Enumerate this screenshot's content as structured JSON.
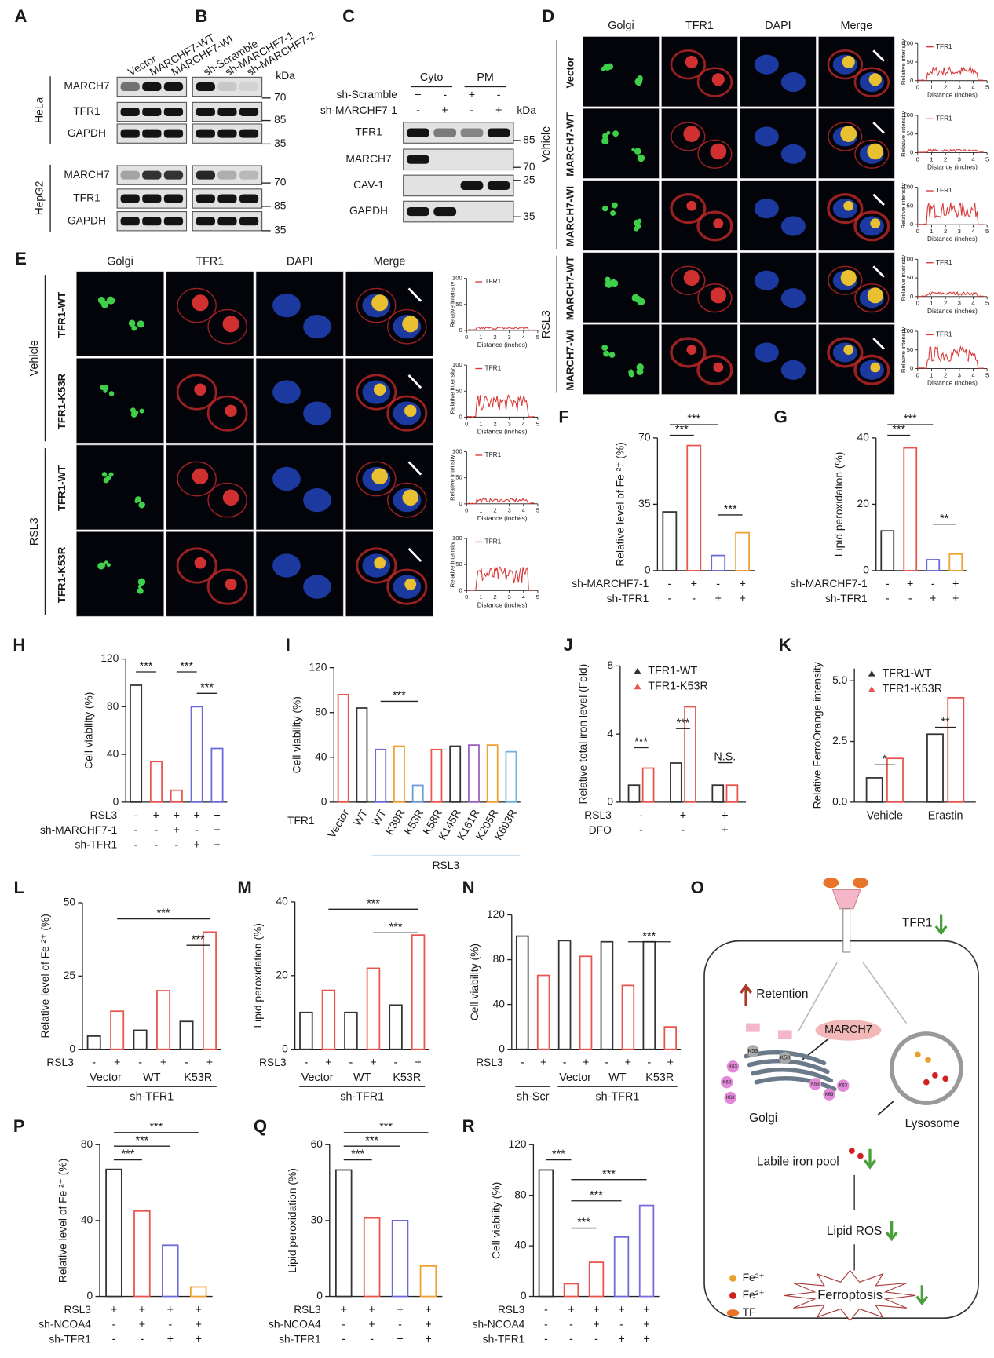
{
  "chart_data": [
    {
      "type": "bar",
      "panel": "F",
      "ylabel": "Relative level of Fe ²⁺ (%)",
      "ylim": [
        0,
        70
      ],
      "yticks": [
        0,
        35,
        70
      ],
      "values": [
        31,
        66,
        8,
        20
      ],
      "colors": [
        "#333333",
        "#e8554e",
        "#6a6ad8",
        "#f0a030"
      ],
      "conditions": [
        {
          "label": "sh-MARCHF7-1",
          "signs": [
            "-",
            "+",
            "-",
            "+"
          ]
        },
        {
          "label": "sh-TFR1",
          "signs": [
            "-",
            "-",
            "+",
            "+"
          ]
        }
      ],
      "annotations": [
        "***",
        "***",
        "***"
      ]
    },
    {
      "type": "bar",
      "panel": "G",
      "ylabel": "Lipid peroxidation (%)",
      "ylim": [
        0,
        40
      ],
      "yticks": [
        0,
        20,
        40
      ],
      "values": [
        12,
        37,
        3.3,
        5
      ],
      "colors": [
        "#333333",
        "#e8554e",
        "#6a6ad8",
        "#f0a030"
      ],
      "conditions": [
        {
          "label": "sh-MARCHF7-1",
          "signs": [
            "-",
            "+",
            "-",
            "+"
          ]
        },
        {
          "label": "sh-TFR1",
          "signs": [
            "-",
            "-",
            "+",
            "+"
          ]
        }
      ],
      "annotations": [
        "***",
        "***",
        "**"
      ]
    },
    {
      "type": "bar",
      "panel": "H",
      "ylabel": "Cell viability (%)",
      "ylim": [
        0,
        120
      ],
      "yticks": [
        0,
        40,
        80,
        120
      ],
      "values": [
        98,
        34,
        10,
        80,
        45
      ],
      "colors": [
        "#333333",
        "#e8554e",
        "#e8554e",
        "#6a6ad8",
        "#6a6ad8"
      ],
      "conditions": [
        {
          "label": "RSL3",
          "signs": [
            "-",
            "+",
            "+",
            "+",
            "+"
          ]
        },
        {
          "label": "sh-MARCHF7-1",
          "signs": [
            "-",
            "-",
            "+",
            "-",
            "+"
          ]
        },
        {
          "label": "sh-TFR1",
          "signs": [
            "-",
            "-",
            "-",
            "+",
            "+"
          ]
        }
      ],
      "annotations": [
        "***",
        "***",
        "***"
      ]
    },
    {
      "type": "bar",
      "panel": "I",
      "ylabel": "Cell viability (%)",
      "ylim": [
        0,
        120
      ],
      "yticks": [
        0,
        40,
        80,
        120
      ],
      "categories": [
        "Vector",
        "WT",
        "WT",
        "K39R",
        "K53R",
        "K58R",
        "K145R",
        "K161R",
        "K205R",
        "K693R"
      ],
      "values": [
        96,
        84,
        47,
        50,
        15,
        47,
        50,
        51,
        51,
        45
      ],
      "colors": [
        "#e8554e",
        "#333333",
        "#6a6ad8",
        "#f0a030",
        "#6a9ad8",
        "#e8554e",
        "#333333",
        "#9b5fc0",
        "#f0a030",
        "#6fb0e0"
      ],
      "row_label": "TFR1",
      "group_label": "RSL3",
      "annotations": [
        "***"
      ]
    },
    {
      "type": "bar",
      "panel": "J",
      "ylabel": "Relative total iron level (Fold)",
      "ylim": [
        0,
        8
      ],
      "yticks": [
        0,
        4,
        8
      ],
      "legend": "upper left",
      "series": [
        {
          "name": "TFR1-WT",
          "color": "#333333",
          "values": [
            1.0,
            2.3,
            1.0
          ]
        },
        {
          "name": "TFR1-K53R",
          "color": "#e8554e",
          "values": [
            2.0,
            5.6,
            1.0
          ]
        }
      ],
      "conditions": [
        {
          "label": "RSL3",
          "signs": [
            "-",
            "+",
            "+"
          ]
        },
        {
          "label": "DFO",
          "signs": [
            "-",
            "-",
            "+"
          ]
        }
      ],
      "annotations": [
        "***",
        "***",
        "N.S."
      ]
    },
    {
      "type": "bar",
      "panel": "K",
      "ylabel": "Relative FerroOrange intensity",
      "ylim": [
        0,
        5.5
      ],
      "yticks": [
        {
          "value": 0,
          "label": "0.0"
        },
        {
          "value": 2.5,
          "label": "2.5"
        },
        {
          "value": 5,
          "label": "5.0"
        }
      ],
      "legend": "upper left",
      "categories": [
        "Vehicle",
        "Erastin"
      ],
      "series": [
        {
          "name": "TFR1-WT",
          "color": "#333333",
          "values": [
            1.0,
            2.8
          ]
        },
        {
          "name": "TFR1-K53R",
          "color": "#e8554e",
          "values": [
            1.8,
            4.3
          ]
        }
      ],
      "annotations": [
        "*",
        "**"
      ]
    },
    {
      "type": "bar",
      "panel": "L",
      "ylabel": "Relative level of Fe ²⁺ (%)",
      "ylim": [
        0,
        50
      ],
      "yticks": [
        0,
        25,
        50
      ],
      "values": [
        4.5,
        13,
        6.5,
        20,
        9.5,
        40
      ],
      "colors": [
        "#333333",
        "#e8554e",
        "#333333",
        "#e8554e",
        "#333333",
        "#e8554e"
      ],
      "conditions": [
        {
          "label": "RSL3",
          "signs": [
            "-",
            "+",
            "-",
            "+",
            "-",
            "+"
          ]
        }
      ],
      "groups": [
        "Vector",
        "WT",
        "K53R"
      ],
      "outer_groups": [
        "sh-TFR1"
      ],
      "annotations": [
        "***",
        "***"
      ]
    },
    {
      "type": "bar",
      "panel": "M",
      "ylabel": "Lipid peroxidation (%)",
      "ylim": [
        0,
        40
      ],
      "yticks": [
        0,
        20,
        40
      ],
      "values": [
        10,
        16,
        10,
        22,
        12,
        31
      ],
      "colors": [
        "#333333",
        "#e8554e",
        "#333333",
        "#e8554e",
        "#333333",
        "#e8554e"
      ],
      "conditions": [
        {
          "label": "RSL3",
          "signs": [
            "-",
            "+",
            "-",
            "+",
            "-",
            "+"
          ]
        }
      ],
      "groups": [
        "Vector",
        "WT",
        "K53R"
      ],
      "outer_groups": [
        "sh-TFR1"
      ],
      "annotations": [
        "***",
        "***"
      ]
    },
    {
      "type": "bar",
      "panel": "N",
      "ylabel": "Cell viability (%)",
      "ylim": [
        0,
        120
      ],
      "yticks": [
        0,
        40,
        80,
        120
      ],
      "values": [
        101,
        66,
        97,
        83,
        96,
        57,
        96,
        20
      ],
      "colors": [
        "#333333",
        "#e8554e",
        "#333333",
        "#e8554e",
        "#333333",
        "#e8554e",
        "#333333",
        "#e8554e"
      ],
      "conditions": [
        {
          "label": "RSL3",
          "signs": [
            "-",
            "+",
            "-",
            "+",
            "-",
            "+",
            "-",
            "+"
          ]
        }
      ],
      "groups": [
        "Vector",
        "WT",
        "K53R"
      ],
      "outer_groups": [
        "sh-Scr",
        "sh-TFR1"
      ],
      "annotations": [
        "***"
      ]
    },
    {
      "type": "bar",
      "panel": "P",
      "ylabel": "Relative level of Fe ²⁺ (%)",
      "ylim": [
        0,
        80
      ],
      "yticks": [
        0,
        40,
        80
      ],
      "values": [
        67,
        45,
        27,
        5
      ],
      "colors": [
        "#333333",
        "#e8554e",
        "#6a6ad8",
        "#f0a030"
      ],
      "conditions": [
        {
          "label": "RSL3",
          "signs": [
            "+",
            "+",
            "+",
            "+"
          ]
        },
        {
          "label": "sh-NCOA4",
          "signs": [
            "-",
            "+",
            "-",
            "+"
          ]
        },
        {
          "label": "sh-TFR1",
          "signs": [
            "-",
            "-",
            "+",
            "+"
          ]
        }
      ],
      "annotations": [
        "***",
        "***",
        "***"
      ]
    },
    {
      "type": "bar",
      "panel": "Q",
      "ylabel": "Lipid peroxidation (%)",
      "ylim": [
        0,
        60
      ],
      "yticks": [
        0,
        30,
        60
      ],
      "values": [
        50,
        31,
        30,
        12
      ],
      "colors": [
        "#333333",
        "#e8554e",
        "#6a6ad8",
        "#f0a030"
      ],
      "conditions": [
        {
          "label": "RSL3",
          "signs": [
            "+",
            "+",
            "+",
            "+"
          ]
        },
        {
          "label": "sh-NCOA4",
          "signs": [
            "-",
            "+",
            "-",
            "+"
          ]
        },
        {
          "label": "sh-TFR1",
          "signs": [
            "-",
            "-",
            "+",
            "+"
          ]
        }
      ],
      "annotations": [
        "***",
        "***",
        "***"
      ]
    },
    {
      "type": "bar",
      "panel": "R",
      "ylabel": "Cell viability (%)",
      "ylim": [
        0,
        120
      ],
      "yticks": [
        0,
        40,
        80,
        120
      ],
      "values": [
        100,
        10,
        27,
        47,
        72
      ],
      "colors": [
        "#333333",
        "#e8554e",
        "#e8554e",
        "#6a6ad8",
        "#7a6ae0"
      ],
      "conditions": [
        {
          "label": "RSL3",
          "signs": [
            "-",
            "+",
            "+",
            "+",
            "+"
          ]
        },
        {
          "label": "sh-NCOA4",
          "signs": [
            "-",
            "-",
            "+",
            "-",
            "+"
          ]
        },
        {
          "label": "sh-TFR1",
          "signs": [
            "-",
            "-",
            "-",
            "+",
            "+"
          ]
        }
      ],
      "annotations": [
        "***",
        "***",
        "***",
        "***"
      ]
    }
  ],
  "blots": {
    "A": {
      "panel": "A",
      "lanes": [
        "Vector",
        "MARCHF7-WT",
        "MARCHF7-WI"
      ],
      "cell_lines": [
        "HeLa",
        "HepG2"
      ],
      "rows": [
        "MARCH7",
        "TFR1",
        "GAPDH"
      ]
    },
    "B": {
      "panel": "B",
      "lanes": [
        "sh-Scramble",
        "sh-MARCHF7-1",
        "sh-MARCHF7-2"
      ],
      "unit": "kDa",
      "markers": [
        70,
        85,
        35
      ]
    },
    "C": {
      "panel": "C",
      "groups": [
        "Cyto",
        "PM"
      ],
      "conditions": [
        {
          "label": "sh-Scramble",
          "signs": [
            "+",
            "-",
            "+",
            "-"
          ]
        },
        {
          "label": "sh-MARCHF7-1",
          "signs": [
            "-",
            "+",
            "-",
            "+"
          ]
        }
      ],
      "unit": "kDa",
      "rows": [
        "TFR1",
        "MARCH7",
        "CAV-1",
        "GAPDH"
      ],
      "markers": [
        85,
        70,
        25,
        35
      ]
    }
  },
  "micrographs": {
    "D": {
      "panel": "D",
      "channels": [
        "Golgi",
        "TFR1",
        "DAPI",
        "Merge"
      ],
      "treatments": [
        "Vehicle",
        "RSL3"
      ],
      "rows": [
        "Vector",
        "MARCH7-WT",
        "MARCH7-WI",
        "MARCH7-WT",
        "MARCH7-WI"
      ],
      "profile": {
        "legend": "TFR1",
        "ylabel": "Relative intensity",
        "xlabel": "Distance (inches)",
        "yticks": [
          0,
          50,
          100
        ],
        "xticks": [
          0,
          1,
          2,
          3,
          4,
          5
        ]
      }
    },
    "E": {
      "panel": "E",
      "channels": [
        "Golgi",
        "TFR1",
        "DAPI",
        "Merge"
      ],
      "treatments": [
        "Vehicle",
        "RSL3"
      ],
      "rows": [
        "TFR1-WT",
        "TFR1-K53R",
        "TFR1-WT",
        "TFR1-K53R"
      ],
      "profile": {
        "legend": "TFR1",
        "ylabel": "Relative intensity",
        "xlabel": "Distance (inches)",
        "yticks": [
          0,
          50,
          100
        ],
        "xticks": [
          0,
          1,
          2,
          3,
          4,
          5
        ]
      }
    }
  },
  "diagram": {
    "panel": "O",
    "receptor": "TFR1",
    "retention": "Retention",
    "enzyme": "MARCH7",
    "site": "K53",
    "chain": "K63",
    "golgi": "Golgi",
    "lysosome": "Lysosome",
    "pool": "Labile iron pool",
    "ros": "Lipid ROS",
    "outcome": "Ferroptosis",
    "legend": [
      "Fe³⁺",
      "Fe²⁺",
      "TF"
    ]
  }
}
